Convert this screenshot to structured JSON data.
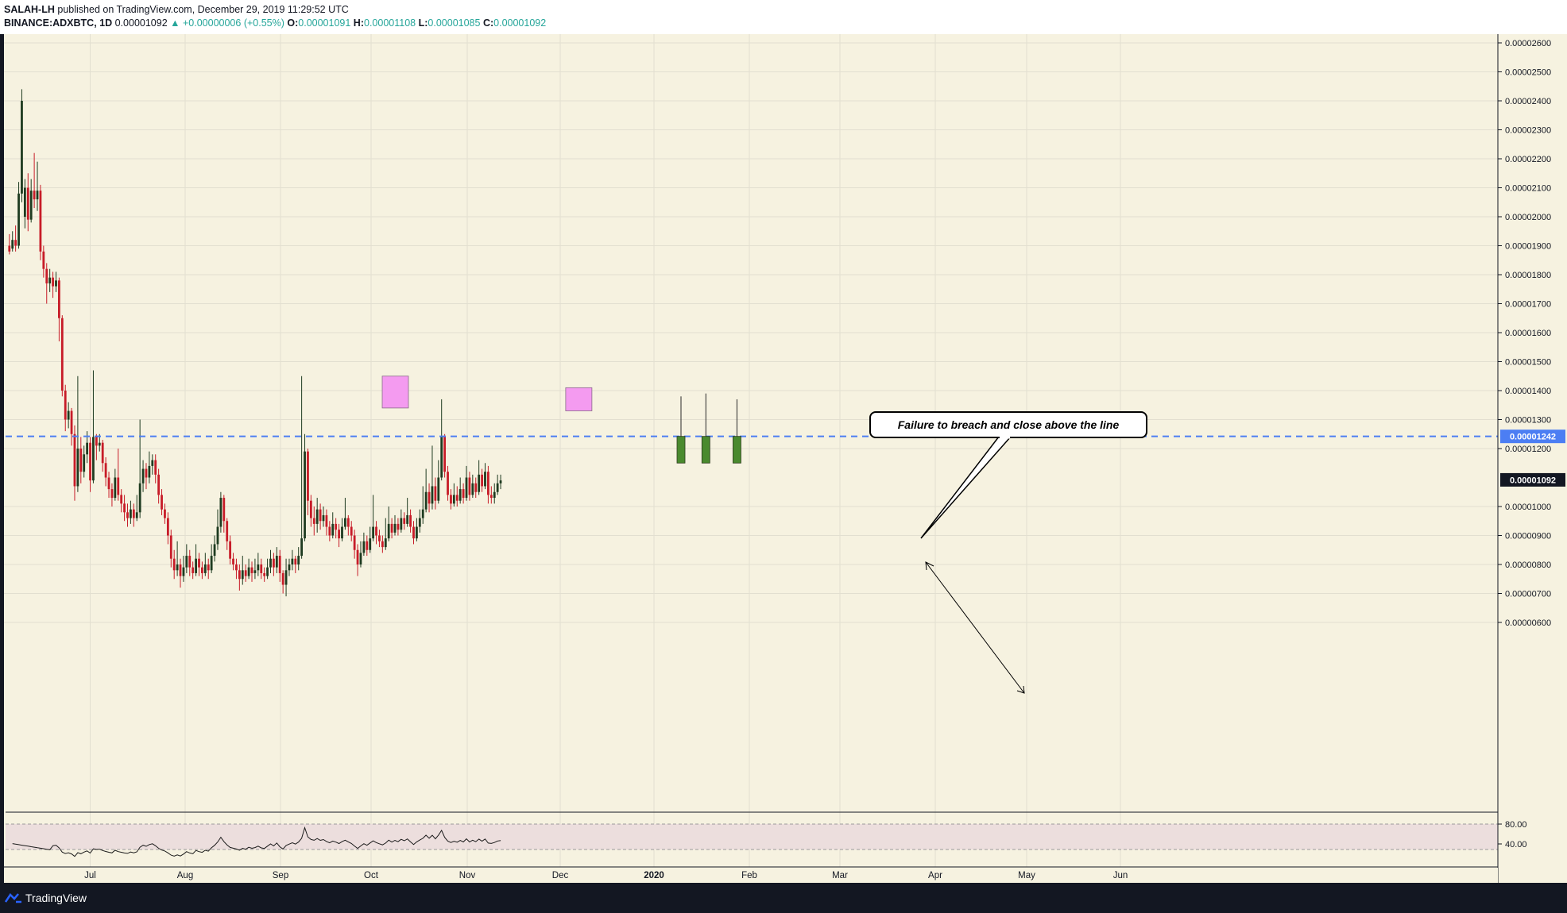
{
  "header": {
    "author": "SALAH-LH",
    "published_text": "published on TradingView.com, December 29, 2019 11:29:52 UTC",
    "symbol_interval": "BINANCE:ADXBTC, 1D",
    "last_price": "0.00001092",
    "change": "+0.00000006 (+0.55%)",
    "open_label": "O:",
    "open_value": "0.00001091",
    "high_label": "H:",
    "high_value": "0.00001108",
    "low_label": "L:",
    "low_value": "0.00001085",
    "close_label": "C:",
    "close_value": "0.00001092"
  },
  "price_axis": {
    "ticks": [
      "0.00002600",
      "0.00002500",
      "0.00002400",
      "0.00002300",
      "0.00002200",
      "0.00002100",
      "0.00002000",
      "0.00001900",
      "0.00001800",
      "0.00001700",
      "0.00001600",
      "0.00001500",
      "0.00001400",
      "0.00001300",
      "0.00001200",
      "0.00001000",
      "0.00000900",
      "0.00000800",
      "0.00000700",
      "0.00000600"
    ],
    "level_label": "0.00001242",
    "current_label": "0.00001092"
  },
  "time_axis": {
    "labels": [
      "Jul",
      "Aug",
      "Sep",
      "Oct",
      "Nov",
      "Dec",
      "2020",
      "Feb",
      "Mar",
      "Apr",
      "May",
      "Jun"
    ]
  },
  "rsi_axis": {
    "ticks": [
      "80.00",
      "40.00"
    ]
  },
  "annotation": {
    "text": "Failure to breach and close above the line"
  },
  "footer": {
    "brand": "TradingView"
  },
  "colors": {
    "chart_bg": "#f6f2e0",
    "grid": "#e2dfd0",
    "up_candle": "#1e3b20",
    "down_candle": "#c71c28",
    "projected_candle": "#4a8a2e",
    "level_line": "#4c7ef3",
    "highlight_box": "#f49bf0",
    "rsi_band": "#ecdedd",
    "footer_bg": "#131722"
  },
  "chart_data": {
    "type": "candlestick",
    "symbol": "BINANCE:ADXBTC",
    "interval": "1D",
    "ylim": [
      5.6e-06,
      2.67e-05
    ],
    "resistance_level": 1.242e-05,
    "last_close": 1.092e-05,
    "highlight_boxes": [
      {
        "date": "Oct 3",
        "high": 1.45e-05,
        "low": 1.34e-05
      },
      {
        "date": "Dec 1",
        "high": 1.41e-05,
        "low": 1.33e-05
      }
    ],
    "projected_candles": [
      {
        "date": "Jan 3",
        "open": 1.242e-05,
        "close": 1.15e-05,
        "high": 1.38e-05,
        "low": 1.15e-05
      },
      {
        "date": "Jan 11",
        "open": 1.242e-05,
        "close": 1.15e-05,
        "high": 1.39e-05,
        "low": 1.15e-05
      },
      {
        "date": "Jan 21",
        "open": 1.242e-05,
        "close": 1.15e-05,
        "high": 1.37e-05,
        "low": 1.15e-05
      }
    ],
    "rsi": {
      "levels": [
        80,
        40
      ],
      "ylim": [
        25,
        90
      ]
    },
    "ohlc": [
      [
        1.9e-05,
        1.88e-05,
        1.94e-05,
        1.87e-05
      ],
      [
        1.89e-05,
        1.92e-05,
        1.95e-05,
        1.88e-05
      ],
      [
        1.92e-05,
        1.9e-05,
        1.97e-05,
        1.88e-05
      ],
      [
        1.9e-05,
        2.08e-05,
        2.12e-05,
        1.89e-05
      ],
      [
        2.08e-05,
        2.4e-05,
        2.44e-05,
        2.05e-05
      ],
      [
        2e-05,
        2.1e-05,
        2.13e-05,
        1.96e-05
      ],
      [
        2.1e-05,
        1.99e-05,
        2.15e-05,
        1.95e-05
      ],
      [
        1.99e-05,
        2.09e-05,
        2.13e-05,
        1.98e-05
      ],
      [
        2.09e-05,
        2.06e-05,
        2.22e-05,
        2.03e-05
      ],
      [
        2.06e-05,
        2.09e-05,
        2.19e-05,
        2.02e-05
      ],
      [
        2.09e-05,
        1.88e-05,
        2.11e-05,
        1.85e-05
      ],
      [
        1.88e-05,
        1.82e-05,
        1.9e-05,
        1.79e-05
      ],
      [
        1.82e-05,
        1.77e-05,
        1.84e-05,
        1.7e-05
      ],
      [
        1.77e-05,
        1.79e-05,
        1.82e-05,
        1.74e-05
      ],
      [
        1.79e-05,
        1.76e-05,
        1.81e-05,
        1.72e-05
      ],
      [
        1.76e-05,
        1.78e-05,
        1.81e-05,
        1.74e-05
      ],
      [
        1.78e-05,
        1.65e-05,
        1.79e-05,
        1.57e-05
      ],
      [
        1.65e-05,
        1.4e-05,
        1.66e-05,
        1.38e-05
      ],
      [
        1.4e-05,
        1.3e-05,
        1.42e-05,
        1.26e-05
      ],
      [
        1.3e-05,
        1.33e-05,
        1.36e-05,
        1.27e-05
      ],
      [
        1.33e-05,
        1.25e-05,
        1.34e-05,
        1.21e-05
      ],
      [
        1.25e-05,
        1.07e-05,
        1.28e-05,
        1.02e-05
      ],
      [
        1.07e-05,
        1.2e-05,
        1.45e-05,
        1.05e-05
      ],
      [
        1.2e-05,
        1.12e-05,
        1.24e-05,
        1.08e-05
      ],
      [
        1.12e-05,
        1.18e-05,
        1.21e-05,
        1.1e-05
      ],
      [
        1.18e-05,
        1.22e-05,
        1.26e-05,
        1.15e-05
      ],
      [
        1.22e-05,
        1.09e-05,
        1.24e-05,
        1.05e-05
      ],
      [
        1.09e-05,
        1.24e-05,
        1.47e-05,
        1.08e-05
      ],
      [
        1.24e-05,
        1.21e-05,
        1.25e-05,
        1.16e-05
      ],
      [
        1.21e-05,
        1.22e-05,
        1.25e-05,
        1.19e-05
      ],
      [
        1.22e-05,
        1.15e-05,
        1.23e-05,
        1.12e-05
      ],
      [
        1.15e-05,
        1.1e-05,
        1.17e-05,
        1.07e-05
      ],
      [
        1.1e-05,
        1.06e-05,
        1.12e-05,
        1.03e-05
      ],
      [
        1.06e-05,
        1.03e-05,
        1.08e-05,
        1e-05
      ],
      [
        1.03e-05,
        1.1e-05,
        1.13e-05,
        1.02e-05
      ],
      [
        1.1e-05,
        1.04e-05,
        1.2e-05,
        1.02e-05
      ],
      [
        1.04e-05,
        1.01e-05,
        1.06e-05,
        9.8e-06
      ],
      [
        1.01e-05,
        9.8e-06,
        1.04e-05,
        9.5e-06
      ],
      [
        9.8e-06,
        9.6e-06,
        1.01e-05,
        9.3e-06
      ],
      [
        9.6e-06,
        9.9e-06,
        1.02e-05,
        9.4e-06
      ],
      [
        9.9e-06,
        9.6e-06,
        1.01e-05,
        9.3e-06
      ],
      [
        9.6e-06,
        9.8e-06,
        1.04e-05,
        9.5e-06
      ],
      [
        9.8e-06,
        1.08e-05,
        1.3e-05,
        9.6e-06
      ],
      [
        1.08e-05,
        1.13e-05,
        1.16e-05,
        1.05e-05
      ],
      [
        1.13e-05,
        1.1e-05,
        1.15e-05,
        1.06e-05
      ],
      [
        1.1e-05,
        1.14e-05,
        1.19e-05,
        1.08e-05
      ],
      [
        1.14e-05,
        1.16e-05,
        1.18e-05,
        1.11e-05
      ],
      [
        1.16e-05,
        1.11e-05,
        1.18e-05,
        1.08e-05
      ],
      [
        1.11e-05,
        1.04e-05,
        1.13e-05,
        1.01e-05
      ],
      [
        1.04e-05,
        9.9e-06,
        1.06e-05,
        9.7e-06
      ],
      [
        9.9e-06,
        9.6e-06,
        1.01e-05,
        9.4e-06
      ],
      [
        9.6e-06,
        9e-06,
        9.8e-06,
        8.7e-06
      ],
      [
        9e-06,
        8.2e-06,
        9.2e-06,
        7.9e-06
      ],
      [
        8.2e-06,
        7.8e-06,
        8.5e-06,
        7.5e-06
      ],
      [
        7.8e-06,
        8e-06,
        8.8e-06,
        7.6e-06
      ],
      [
        8e-06,
        7.6e-06,
        8.2e-06,
        7.2e-06
      ],
      [
        7.6e-06,
        7.9e-06,
        8.3e-06,
        7.4e-06
      ],
      [
        7.9e-06,
        8.3e-06,
        8.7e-06,
        7.7e-06
      ],
      [
        8.3e-06,
        7.9e-06,
        8.5e-06,
        7.6e-06
      ],
      [
        7.9e-06,
        7.7e-06,
        8.1e-06,
        7.5e-06
      ],
      [
        7.7e-06,
        8.2e-06,
        8.7e-06,
        7.6e-06
      ],
      [
        8.2e-06,
        7.9e-06,
        8.4e-06,
        7.6e-06
      ],
      [
        7.9e-06,
        7.7e-06,
        8.1e-06,
        7.5e-06
      ],
      [
        7.7e-06,
        8e-06,
        8.4e-06,
        7.6e-06
      ],
      [
        8e-06,
        7.8e-06,
        8.2e-06,
        7.5e-06
      ],
      [
        7.8e-06,
        8.3e-06,
        8.7e-06,
        7.7e-06
      ],
      [
        8.3e-06,
        8.7e-06,
        9e-06,
        8.1e-06
      ],
      [
        8.7e-06,
        9.3e-06,
        9.9e-06,
        8.5e-06
      ],
      [
        9.3e-06,
        1.03e-05,
        1.05e-05,
        9.1e-06
      ],
      [
        1.03e-05,
        9.5e-06,
        1.04e-05,
        9.1e-06
      ],
      [
        9.5e-06,
        8.8e-06,
        9.6e-06,
        8.5e-06
      ],
      [
        8.8e-06,
        8.2e-06,
        9e-06,
        8e-06
      ],
      [
        8.2e-06,
        8e-06,
        8.4e-06,
        7.8e-06
      ],
      [
        8e-06,
        7.8e-06,
        8.2e-06,
        7.5e-06
      ],
      [
        7.8e-06,
        7.5e-06,
        8e-06,
        7.1e-06
      ],
      [
        7.5e-06,
        7.8e-06,
        8.3e-06,
        7.3e-06
      ],
      [
        7.8e-06,
        7.6e-06,
        8e-06,
        7.4e-06
      ],
      [
        7.6e-06,
        7.9e-06,
        8.2e-06,
        7.5e-06
      ],
      [
        7.9e-06,
        7.7e-06,
        8.1e-06,
        7.4e-06
      ],
      [
        7.7e-06,
        7.8e-06,
        8.2e-06,
        7.5e-06
      ],
      [
        7.8e-06,
        8e-06,
        8.4e-06,
        7.6e-06
      ],
      [
        8e-06,
        7.7e-06,
        8.2e-06,
        7.5e-06
      ],
      [
        7.7e-06,
        7.6e-06,
        7.9e-06,
        7.4e-06
      ],
      [
        7.6e-06,
        7.9e-06,
        8.2e-06,
        7.5e-06
      ],
      [
        7.9e-06,
        8.2e-06,
        8.5e-06,
        7.7e-06
      ],
      [
        8.2e-06,
        7.9e-06,
        8.4e-06,
        7.6e-06
      ],
      [
        7.9e-06,
        8.3e-06,
        8.6e-06,
        7.7e-06
      ],
      [
        8.3e-06,
        7.7e-06,
        8.5e-06,
        7.4e-06
      ],
      [
        7.7e-06,
        7.3e-06,
        7.8e-06,
        7e-06
      ],
      [
        7.3e-06,
        7.8e-06,
        8.2e-06,
        6.9e-06
      ],
      [
        7.8e-06,
        8e-06,
        8.2e-06,
        7.6e-06
      ],
      [
        8e-06,
        8.2e-06,
        8.5e-06,
        7.8e-06
      ],
      [
        8.2e-06,
        8e-06,
        8.3e-06,
        7.7e-06
      ],
      [
        8e-06,
        8.3e-06,
        8.6e-06,
        7.8e-06
      ],
      [
        8.3e-06,
        8.9e-06,
        1.45e-05,
        8.2e-06
      ],
      [
        8.9e-06,
        1.19e-05,
        1.25e-05,
        8.8e-06
      ],
      [
        1.19e-05,
        1.02e-05,
        1.2e-05,
        9.7e-06
      ],
      [
        1.02e-05,
        9.6e-06,
        1.04e-05,
        9.3e-06
      ],
      [
        9.6e-06,
        9.4e-06,
        1e-05,
        9e-06
      ],
      [
        9.4e-06,
        9.9e-06,
        1.03e-05,
        9.1e-06
      ],
      [
        9.9e-06,
        9.5e-06,
        1.01e-05,
        9.2e-06
      ],
      [
        9.5e-06,
        9.7e-06,
        1e-05,
        9.3e-06
      ],
      [
        9.7e-06,
        9.3e-06,
        9.9e-06,
        9e-06
      ],
      [
        9.3e-06,
        9e-06,
        9.5e-06,
        8.8e-06
      ],
      [
        9e-06,
        9.4e-06,
        9.8e-06,
        8.9e-06
      ],
      [
        9.4e-06,
        9.2e-06,
        9.6e-06,
        8.9e-06
      ],
      [
        9.2e-06,
        8.9e-06,
        9.4e-06,
        8.6e-06
      ],
      [
        8.9e-06,
        9.3e-06,
        9.6e-06,
        8.8e-06
      ],
      [
        9.3e-06,
        9.6e-06,
        1.03e-05,
        9.2e-06
      ],
      [
        9.6e-06,
        9.3e-06,
        9.7e-06,
        9e-06
      ],
      [
        9.3e-06,
        9e-06,
        9.5e-06,
        8.8e-06
      ],
      [
        9e-06,
        8.5e-06,
        9.2e-06,
        8.2e-06
      ],
      [
        8.5e-06,
        8e-06,
        8.7e-06,
        7.6e-06
      ],
      [
        8e-06,
        8.4e-06,
        8.8e-06,
        7.9e-06
      ],
      [
        8.4e-06,
        8.8e-06,
        9.1e-06,
        8.3e-06
      ],
      [
        8.8e-06,
        8.5e-06,
        9e-06,
        8.3e-06
      ],
      [
        8.5e-06,
        8.9e-06,
        9.3e-06,
        8.4e-06
      ],
      [
        8.9e-06,
        9.3e-06,
        1.04e-05,
        8.8e-06
      ],
      [
        9.3e-06,
        9e-06,
        9.5e-06,
        8.7e-06
      ],
      [
        9e-06,
        8.8e-06,
        9.2e-06,
        8.6e-06
      ],
      [
        8.8e-06,
        8.6e-06,
        9e-06,
        8.4e-06
      ],
      [
        8.6e-06,
        8.9e-06,
        9.6e-06,
        8.5e-06
      ],
      [
        8.9e-06,
        9.4e-06,
        1e-05,
        8.8e-06
      ],
      [
        9.4e-06,
        9.1e-06,
        9.6e-06,
        8.9e-06
      ],
      [
        9.1e-06,
        9.4e-06,
        9.7e-06,
        9e-06
      ],
      [
        9.4e-06,
        9.2e-06,
        9.6e-06,
        9e-06
      ],
      [
        9.2e-06,
        9.6e-06,
        9.9e-06,
        9.1e-06
      ],
      [
        9.6e-06,
        9.4e-06,
        9.8e-06,
        9.2e-06
      ],
      [
        9.4e-06,
        9.7e-06,
        1.03e-05,
        9.3e-06
      ],
      [
        9.7e-06,
        9.3e-06,
        9.9e-06,
        9.1e-06
      ],
      [
        9.3e-06,
        8.9e-06,
        9.5e-06,
        8.7e-06
      ],
      [
        8.9e-06,
        9.3e-06,
        9.6e-06,
        8.8e-06
      ],
      [
        9.3e-06,
        9.6e-06,
        9.9e-06,
        9.1e-06
      ],
      [
        9.6e-06,
        9.9e-06,
        1.07e-05,
        9.4e-06
      ],
      [
        9.9e-06,
        1.05e-05,
        1.13e-05,
        9.8e-06
      ],
      [
        1.05e-05,
        1.01e-05,
        1.08e-05,
        9.8e-06
      ],
      [
        1.01e-05,
        1.07e-05,
        1.21e-05,
        9.9e-06
      ],
      [
        1.07e-05,
        1.02e-05,
        1.1e-05,
        9.9e-06
      ],
      [
        1.02e-05,
        1.1e-05,
        1.16e-05,
        1.01e-05
      ],
      [
        1.1e-05,
        1.24e-05,
        1.37e-05,
        1.09e-05
      ],
      [
        1.24e-05,
        1.12e-05,
        1.25e-05,
        1.1e-05
      ],
      [
        1.12e-05,
        1.04e-05,
        1.14e-05,
        1.02e-05
      ],
      [
        1.04e-05,
        1.01e-05,
        1.06e-05,
        9.9e-06
      ],
      [
        1.01e-05,
        1.04e-05,
        1.08e-05,
        1e-05
      ],
      [
        1.04e-05,
        1.02e-05,
        1.07e-05,
        1e-05
      ],
      [
        1.02e-05,
        1.06e-05,
        1.1e-05,
        1.01e-05
      ],
      [
        1.06e-05,
        1.03e-05,
        1.08e-05,
        1.01e-05
      ],
      [
        1.03e-05,
        1.1e-05,
        1.14e-05,
        1.02e-05
      ],
      [
        1.1e-05,
        1.04e-05,
        1.12e-05,
        1.02e-05
      ],
      [
        1.04e-05,
        1.08e-05,
        1.11e-05,
        1.03e-05
      ],
      [
        1.08e-05,
        1.05e-05,
        1.1e-05,
        1.03e-05
      ],
      [
        1.05e-05,
        1.11e-05,
        1.16e-05,
        1.04e-05
      ],
      [
        1.11e-05,
        1.07e-05,
        1.13e-05,
        1.05e-05
      ],
      [
        1.07e-05,
        1.12e-05,
        1.15e-05,
        1.06e-05
      ],
      [
        1.12e-05,
        1.04e-05,
        1.14e-05,
        1.01e-05
      ],
      [
        1.04e-05,
        1.03e-05,
        1.07e-05,
        1.01e-05
      ],
      [
        1.03e-05,
        1.05e-05,
        1.08e-05,
        1.01e-05
      ],
      [
        1.05e-05,
        1.08e-05,
        1.11e-05,
        1.04e-05
      ],
      [
        1.08e-05,
        1.09e-05,
        1.11e-05,
        1.06e-05
      ]
    ]
  }
}
